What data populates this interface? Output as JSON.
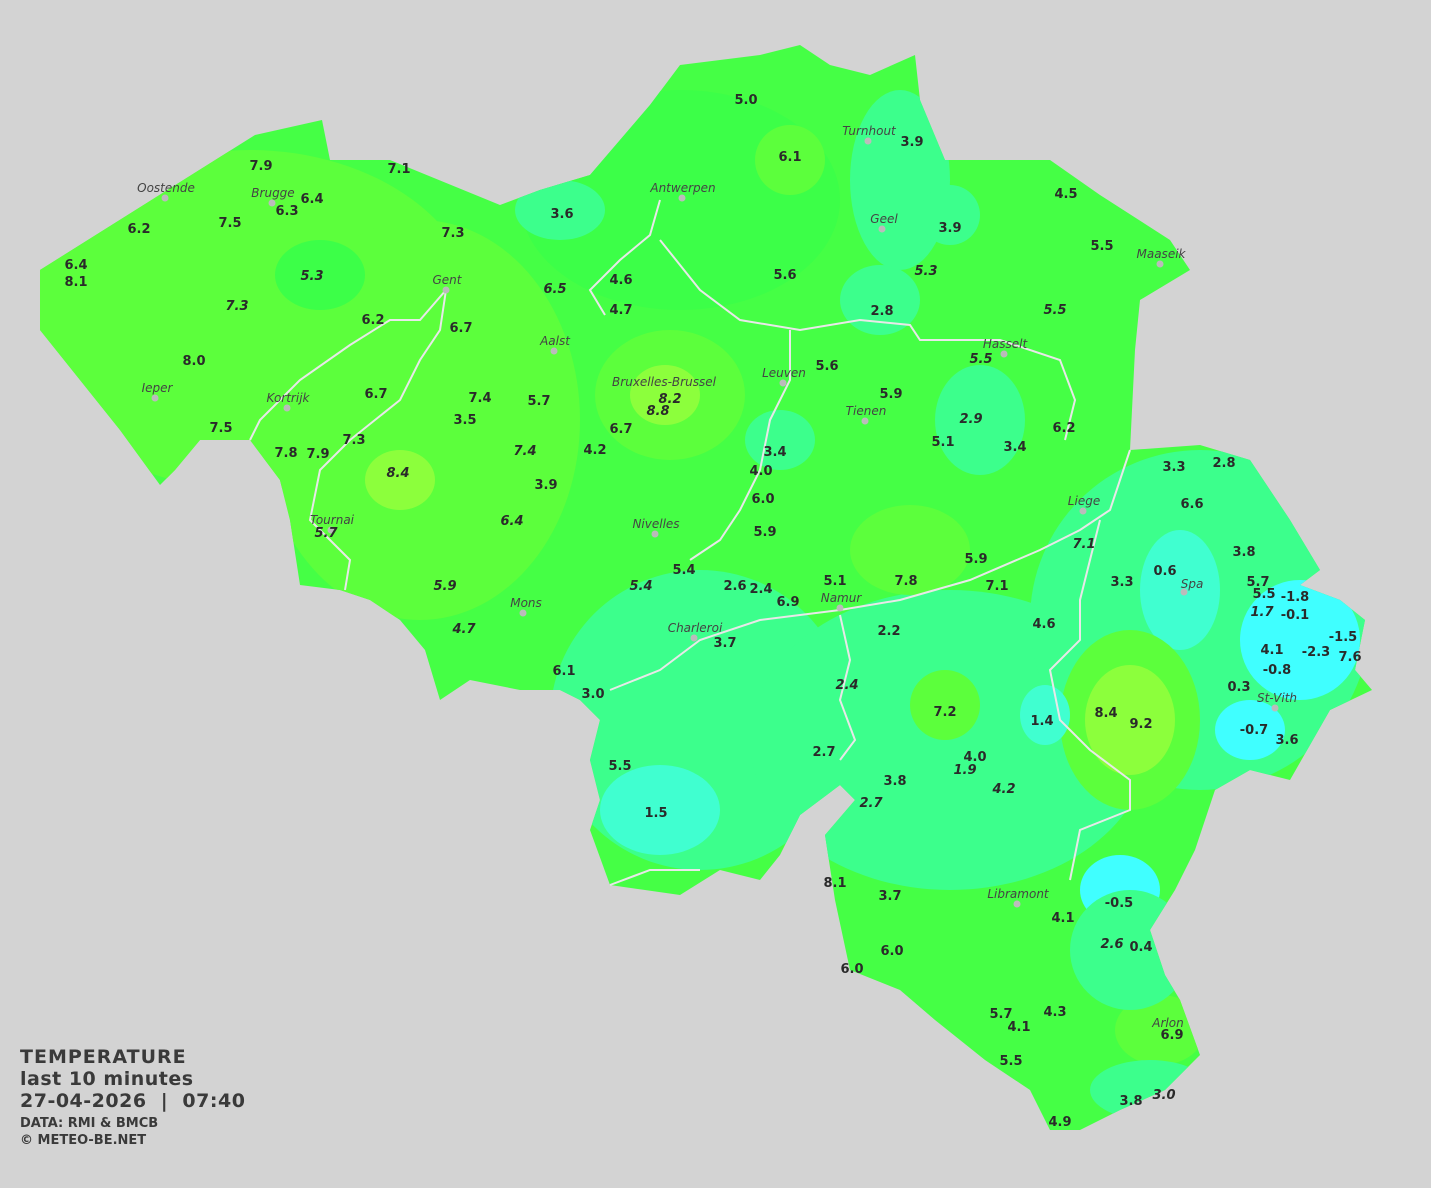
{
  "legend": {
    "title": "TEMPERATURE",
    "period": "last 10 minutes",
    "datetime": "27-04-2026  |  07:40",
    "source": "DATA: RMI & BMCB",
    "copyright": "© METEO-BE.NET"
  },
  "map": {
    "region": "Belgium",
    "colors": {
      "background": "#d3d3d3",
      "warm": "#8cff3c",
      "mild": "#5cff3c",
      "green": "#3cff48",
      "cool": "#3cff8c",
      "cold": "#40ffd0",
      "coldest": "#40ffff",
      "border": "#e8e8e8"
    },
    "cities": [
      "Oostende",
      "Brugge",
      "Gent",
      "Antwerpen",
      "Turnhout",
      "Geel",
      "Maaseik",
      "Hasselt",
      "Aalst",
      "Leuven",
      "Bruxelles-Brussel",
      "Tienen",
      "Ieper",
      "Kortrijk",
      "Tournai",
      "Nivelles",
      "Liege",
      "Mons",
      "Namur",
      "Charleroi",
      "Spa",
      "St-Vith",
      "Libramont",
      "Arlon"
    ],
    "stations": [
      "7.9",
      "7.1",
      "6.4",
      "6.3",
      "6.2",
      "7.5",
      "7.3",
      "6.4",
      "8.1",
      "5.3",
      "7.3",
      "6.2",
      "6.7",
      "6.5",
      "4.6",
      "4.7",
      "8.0",
      "7.5",
      "6.7",
      "7.4",
      "3.5",
      "5.7",
      "7.3",
      "7.8",
      "7.9",
      "7.4",
      "4.2",
      "6.7",
      "8.2",
      "8.8",
      "8.4",
      "3.9",
      "6.4",
      "5.7",
      "5.9",
      "4.7",
      "5.4",
      "5.4",
      "2.6",
      "2.4",
      "6.9",
      "5.1",
      "7.8",
      "5.9",
      "7.1",
      "7.1",
      "3.7",
      "6.1",
      "3.0",
      "5.5",
      "1.5",
      "2.2",
      "4.6",
      "2.4",
      "2.7",
      "7.2",
      "1.4",
      "4.0",
      "1.9",
      "3.8",
      "2.7",
      "4.2",
      "8.4",
      "9.2",
      "3.3",
      "0.6",
      "3.8",
      "5.7",
      "5.5",
      "-1.8",
      "1.7",
      "-0.1",
      "4.1",
      "-2.3",
      "-1.5",
      "7.6",
      "-0.8",
      "0.3",
      "-0.7",
      "3.6",
      "3.3",
      "2.8",
      "6.6",
      "5.0",
      "6.1",
      "3.9",
      "3.6",
      "3.9",
      "4.5",
      "5.5",
      "5.6",
      "5.3",
      "2.8",
      "5.5",
      "5.5",
      "5.6",
      "5.9",
      "3.4",
      "4.0",
      "6.0",
      "5.9",
      "5.1",
      "2.9",
      "3.4",
      "6.2",
      "8.1",
      "3.7",
      "6.0",
      "6.0",
      "-0.5",
      "4.1",
      "2.6",
      "0.4",
      "5.7",
      "4.1",
      "4.3",
      "6.9",
      "5.5",
      "3.8",
      "3.0",
      "4.9"
    ]
  }
}
